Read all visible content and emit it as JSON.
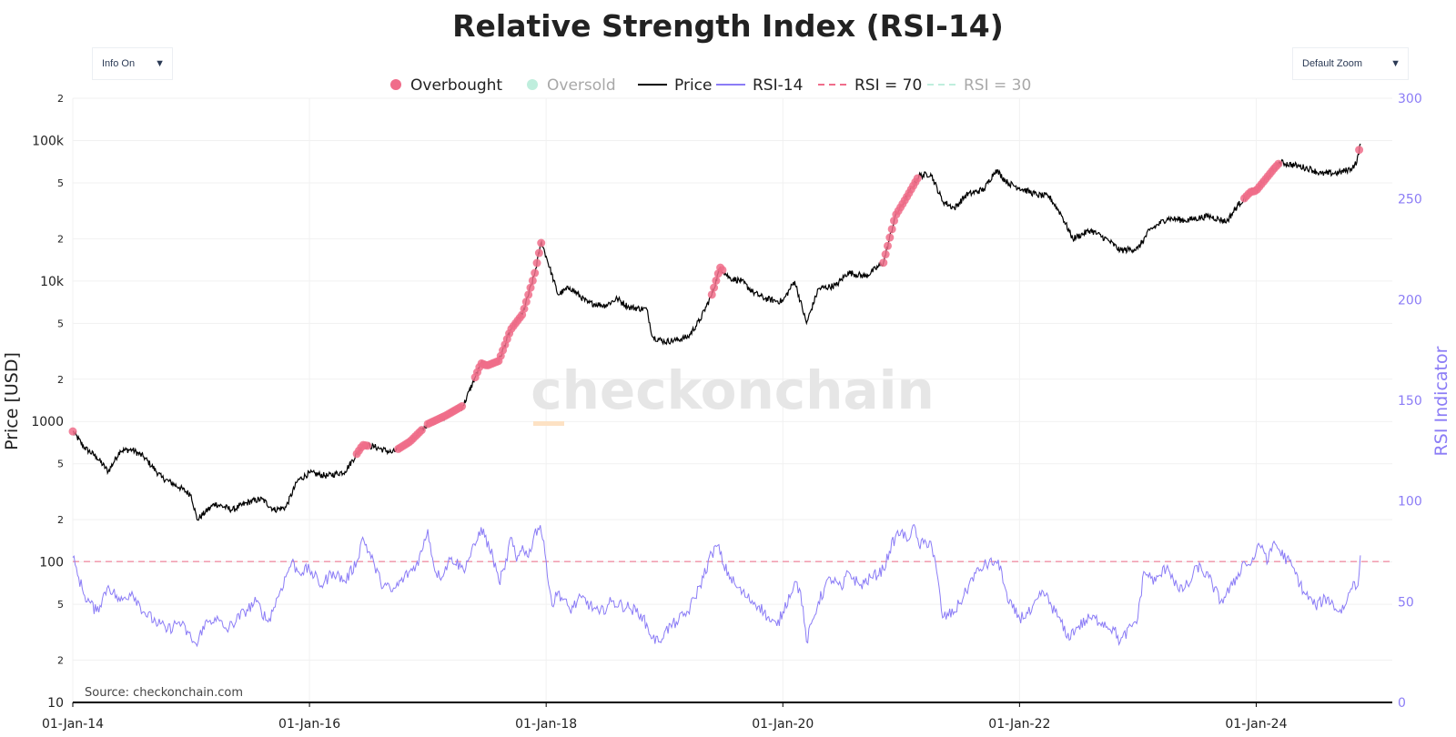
{
  "controls": {
    "info_dropdown": {
      "label": "Info On",
      "arrow": "▼"
    },
    "zoom_dropdown": {
      "label": "Default Zoom",
      "arrow": "▼"
    }
  },
  "chart_data": {
    "type": "line",
    "title": "Relative Strength Index (RSI-14)",
    "source": "Source: checkonchain.com",
    "watermark": "checkonchain",
    "y_left": {
      "label": "Price [USD]",
      "scale": "log",
      "range": [
        10,
        200000
      ],
      "major_ticks": [
        {
          "value": 100000,
          "label": "100k"
        },
        {
          "value": 10000,
          "label": "10k"
        },
        {
          "value": 1000,
          "label": "1000"
        },
        {
          "value": 100,
          "label": "100"
        },
        {
          "value": 10,
          "label": "10"
        }
      ],
      "minor_ticks": [
        {
          "value": 200000,
          "label": "2"
        },
        {
          "value": 50000,
          "label": "5"
        },
        {
          "value": 20000,
          "label": "2"
        },
        {
          "value": 5000,
          "label": "5"
        },
        {
          "value": 2000,
          "label": "2"
        },
        {
          "value": 500,
          "label": "5"
        },
        {
          "value": 200,
          "label": "2"
        },
        {
          "value": 50,
          "label": "5"
        },
        {
          "value": 20,
          "label": "2"
        }
      ]
    },
    "y_right": {
      "label": "RSI Indicator",
      "range": [
        0,
        300
      ],
      "ticks": [
        {
          "value": 300,
          "label": "300"
        },
        {
          "value": 250,
          "label": "250"
        },
        {
          "value": 200,
          "label": "200"
        },
        {
          "value": 150,
          "label": "150"
        },
        {
          "value": 100,
          "label": "100"
        },
        {
          "value": 50,
          "label": "50"
        },
        {
          "value": 0,
          "label": "0"
        }
      ]
    },
    "x_axis": {
      "range": [
        2014.0,
        2025.15
      ],
      "ticks": [
        {
          "value": 2014,
          "label": "01-Jan-14"
        },
        {
          "value": 2016,
          "label": "01-Jan-16"
        },
        {
          "value": 2018,
          "label": "01-Jan-18"
        },
        {
          "value": 2020,
          "label": "01-Jan-20"
        },
        {
          "value": 2022,
          "label": "01-Jan-22"
        },
        {
          "value": 2024,
          "label": "01-Jan-24"
        }
      ]
    },
    "legend": [
      {
        "key": "overbought",
        "label": "Overbought",
        "kind": "dot",
        "color": "#f06d8a",
        "muted": false
      },
      {
        "key": "oversold",
        "label": "Oversold",
        "kind": "dot",
        "color": "#bfeedd",
        "muted": true
      },
      {
        "key": "price",
        "label": "Price",
        "kind": "line",
        "color": "#000000",
        "muted": false
      },
      {
        "key": "rsi",
        "label": "RSI-14",
        "kind": "line",
        "color": "#8b7cf6",
        "muted": false
      },
      {
        "key": "rsi70",
        "label": "RSI = 70",
        "kind": "dash",
        "color": "#f06d8a",
        "muted": false
      },
      {
        "key": "rsi30",
        "label": "RSI = 30",
        "kind": "dash",
        "color": "#bfeedd",
        "muted": true
      }
    ],
    "series": [
      {
        "name": "Price",
        "axis": "left",
        "color": "#000000",
        "points": [
          [
            2014.0,
            850
          ],
          [
            2014.1,
            650
          ],
          [
            2014.2,
            560
          ],
          [
            2014.3,
            440
          ],
          [
            2014.4,
            620
          ],
          [
            2014.5,
            630
          ],
          [
            2014.6,
            560
          ],
          [
            2014.75,
            400
          ],
          [
            2014.9,
            340
          ],
          [
            2015.0,
            300
          ],
          [
            2015.05,
            200
          ],
          [
            2015.2,
            260
          ],
          [
            2015.35,
            235
          ],
          [
            2015.5,
            270
          ],
          [
            2015.6,
            280
          ],
          [
            2015.7,
            235
          ],
          [
            2015.8,
            245
          ],
          [
            2015.9,
            380
          ],
          [
            2016.0,
            430
          ],
          [
            2016.15,
            410
          ],
          [
            2016.3,
            440
          ],
          [
            2016.45,
            680
          ],
          [
            2016.55,
            660
          ],
          [
            2016.7,
            600
          ],
          [
            2016.85,
            720
          ],
          [
            2017.0,
            960
          ],
          [
            2017.15,
            1100
          ],
          [
            2017.3,
            1300
          ],
          [
            2017.45,
            2600
          ],
          [
            2017.5,
            2500
          ],
          [
            2017.6,
            2700
          ],
          [
            2017.7,
            4500
          ],
          [
            2017.8,
            5800
          ],
          [
            2017.9,
            11000
          ],
          [
            2017.96,
            19000
          ],
          [
            2018.0,
            15000
          ],
          [
            2018.1,
            8000
          ],
          [
            2018.2,
            9000
          ],
          [
            2018.35,
            7000
          ],
          [
            2018.5,
            6700
          ],
          [
            2018.6,
            7500
          ],
          [
            2018.7,
            6500
          ],
          [
            2018.85,
            6300
          ],
          [
            2018.9,
            4000
          ],
          [
            2019.0,
            3700
          ],
          [
            2019.1,
            3800
          ],
          [
            2019.2,
            4000
          ],
          [
            2019.3,
            5300
          ],
          [
            2019.4,
            8000
          ],
          [
            2019.47,
            12500
          ],
          [
            2019.55,
            10500
          ],
          [
            2019.65,
            10000
          ],
          [
            2019.75,
            8300
          ],
          [
            2019.85,
            7500
          ],
          [
            2019.95,
            7200
          ],
          [
            2020.0,
            7200
          ],
          [
            2020.1,
            10000
          ],
          [
            2020.2,
            5000
          ],
          [
            2020.3,
            8800
          ],
          [
            2020.45,
            9300
          ],
          [
            2020.55,
            11500
          ],
          [
            2020.7,
            10800
          ],
          [
            2020.85,
            13500
          ],
          [
            2020.95,
            29000
          ],
          [
            2021.05,
            40000
          ],
          [
            2021.15,
            56000
          ],
          [
            2021.25,
            58000
          ],
          [
            2021.35,
            37000
          ],
          [
            2021.45,
            33000
          ],
          [
            2021.55,
            41000
          ],
          [
            2021.7,
            45000
          ],
          [
            2021.8,
            62000
          ],
          [
            2021.9,
            50000
          ],
          [
            2022.0,
            46000
          ],
          [
            2022.15,
            41000
          ],
          [
            2022.25,
            40000
          ],
          [
            2022.35,
            30000
          ],
          [
            2022.45,
            20000
          ],
          [
            2022.6,
            23000
          ],
          [
            2022.75,
            19500
          ],
          [
            2022.85,
            16500
          ],
          [
            2023.0,
            17000
          ],
          [
            2023.1,
            23000
          ],
          [
            2023.25,
            28000
          ],
          [
            2023.4,
            27000
          ],
          [
            2023.6,
            29000
          ],
          [
            2023.75,
            26500
          ],
          [
            2023.85,
            35000
          ],
          [
            2023.95,
            43000
          ],
          [
            2024.0,
            44000
          ],
          [
            2024.15,
            63000
          ],
          [
            2024.2,
            70000
          ],
          [
            2024.35,
            66000
          ],
          [
            2024.45,
            63000
          ],
          [
            2024.55,
            58000
          ],
          [
            2024.7,
            59000
          ],
          [
            2024.8,
            63000
          ],
          [
            2024.85,
            70000
          ],
          [
            2024.88,
            95000
          ]
        ]
      },
      {
        "name": "RSI-14",
        "axis": "right",
        "color": "#8b7cf6",
        "points": [
          [
            2014.0,
            72
          ],
          [
            2014.05,
            62
          ],
          [
            2014.1,
            53
          ],
          [
            2014.2,
            45
          ],
          [
            2014.3,
            58
          ],
          [
            2014.4,
            50
          ],
          [
            2014.5,
            55
          ],
          [
            2014.6,
            45
          ],
          [
            2014.7,
            40
          ],
          [
            2014.8,
            36
          ],
          [
            2014.9,
            40
          ],
          [
            2015.0,
            32
          ],
          [
            2015.05,
            28
          ],
          [
            2015.1,
            38
          ],
          [
            2015.2,
            42
          ],
          [
            2015.3,
            36
          ],
          [
            2015.45,
            45
          ],
          [
            2015.55,
            50
          ],
          [
            2015.65,
            40
          ],
          [
            2015.75,
            55
          ],
          [
            2015.85,
            70
          ],
          [
            2015.9,
            65
          ],
          [
            2016.0,
            66
          ],
          [
            2016.1,
            58
          ],
          [
            2016.2,
            65
          ],
          [
            2016.3,
            60
          ],
          [
            2016.4,
            70
          ],
          [
            2016.45,
            82
          ],
          [
            2016.55,
            68
          ],
          [
            2016.6,
            60
          ],
          [
            2016.7,
            55
          ],
          [
            2016.8,
            62
          ],
          [
            2016.9,
            68
          ],
          [
            2016.95,
            75
          ],
          [
            2017.0,
            86
          ],
          [
            2017.05,
            68
          ],
          [
            2017.1,
            62
          ],
          [
            2017.2,
            72
          ],
          [
            2017.3,
            66
          ],
          [
            2017.4,
            78
          ],
          [
            2017.45,
            87
          ],
          [
            2017.55,
            72
          ],
          [
            2017.6,
            60
          ],
          [
            2017.65,
            66
          ],
          [
            2017.7,
            82
          ],
          [
            2017.75,
            70
          ],
          [
            2017.8,
            78
          ],
          [
            2017.85,
            72
          ],
          [
            2017.9,
            84
          ],
          [
            2017.95,
            88
          ],
          [
            2018.0,
            70
          ],
          [
            2018.05,
            48
          ],
          [
            2018.1,
            55
          ],
          [
            2018.2,
            46
          ],
          [
            2018.3,
            52
          ],
          [
            2018.45,
            44
          ],
          [
            2018.55,
            50
          ],
          [
            2018.7,
            47
          ],
          [
            2018.8,
            44
          ],
          [
            2018.9,
            32
          ],
          [
            2018.95,
            30
          ],
          [
            2019.0,
            35
          ],
          [
            2019.1,
            40
          ],
          [
            2019.2,
            45
          ],
          [
            2019.3,
            58
          ],
          [
            2019.4,
            74
          ],
          [
            2019.45,
            78
          ],
          [
            2019.5,
            68
          ],
          [
            2019.6,
            58
          ],
          [
            2019.7,
            52
          ],
          [
            2019.8,
            48
          ],
          [
            2019.9,
            40
          ],
          [
            2019.95,
            38
          ],
          [
            2020.0,
            45
          ],
          [
            2020.1,
            60
          ],
          [
            2020.15,
            55
          ],
          [
            2020.2,
            30
          ],
          [
            2020.3,
            50
          ],
          [
            2020.4,
            62
          ],
          [
            2020.5,
            56
          ],
          [
            2020.55,
            65
          ],
          [
            2020.65,
            58
          ],
          [
            2020.75,
            62
          ],
          [
            2020.85,
            66
          ],
          [
            2020.9,
            75
          ],
          [
            2020.95,
            82
          ],
          [
            2021.0,
            85
          ],
          [
            2021.05,
            80
          ],
          [
            2021.1,
            88
          ],
          [
            2021.15,
            78
          ],
          [
            2021.25,
            80
          ],
          [
            2021.3,
            65
          ],
          [
            2021.35,
            42
          ],
          [
            2021.45,
            45
          ],
          [
            2021.55,
            55
          ],
          [
            2021.6,
            62
          ],
          [
            2021.7,
            68
          ],
          [
            2021.8,
            70
          ],
          [
            2021.85,
            65
          ],
          [
            2021.9,
            50
          ],
          [
            2022.0,
            42
          ],
          [
            2022.1,
            45
          ],
          [
            2022.2,
            55
          ],
          [
            2022.3,
            45
          ],
          [
            2022.35,
            40
          ],
          [
            2022.4,
            32
          ],
          [
            2022.5,
            38
          ],
          [
            2022.6,
            42
          ],
          [
            2022.7,
            40
          ],
          [
            2022.8,
            36
          ],
          [
            2022.85,
            30
          ],
          [
            2023.0,
            42
          ],
          [
            2023.05,
            65
          ],
          [
            2023.15,
            60
          ],
          [
            2023.25,
            68
          ],
          [
            2023.35,
            55
          ],
          [
            2023.45,
            60
          ],
          [
            2023.5,
            68
          ],
          [
            2023.6,
            62
          ],
          [
            2023.7,
            50
          ],
          [
            2023.8,
            58
          ],
          [
            2023.9,
            70
          ],
          [
            2023.95,
            68
          ],
          [
            2024.0,
            75
          ],
          [
            2024.05,
            78
          ],
          [
            2024.1,
            70
          ],
          [
            2024.15,
            80
          ],
          [
            2024.2,
            75
          ],
          [
            2024.3,
            68
          ],
          [
            2024.4,
            55
          ],
          [
            2024.5,
            48
          ],
          [
            2024.6,
            52
          ],
          [
            2024.7,
            45
          ],
          [
            2024.75,
            48
          ],
          [
            2024.82,
            60
          ],
          [
            2024.86,
            58
          ],
          [
            2024.88,
            73
          ]
        ]
      }
    ],
    "overbought_segments": [
      [
        2016.4,
        2016.5
      ],
      [
        2016.75,
        2016.95
      ],
      [
        2017.0,
        2017.3
      ],
      [
        2017.4,
        2017.96
      ],
      [
        2019.4,
        2019.5
      ],
      [
        2020.85,
        2021.15
      ],
      [
        2023.9,
        2024.2
      ],
      [
        2024.87,
        2024.88
      ]
    ],
    "reference_lines": [
      {
        "name": "RSI = 70",
        "value": 70,
        "color": "#f06d8a",
        "style": "dash"
      }
    ]
  }
}
